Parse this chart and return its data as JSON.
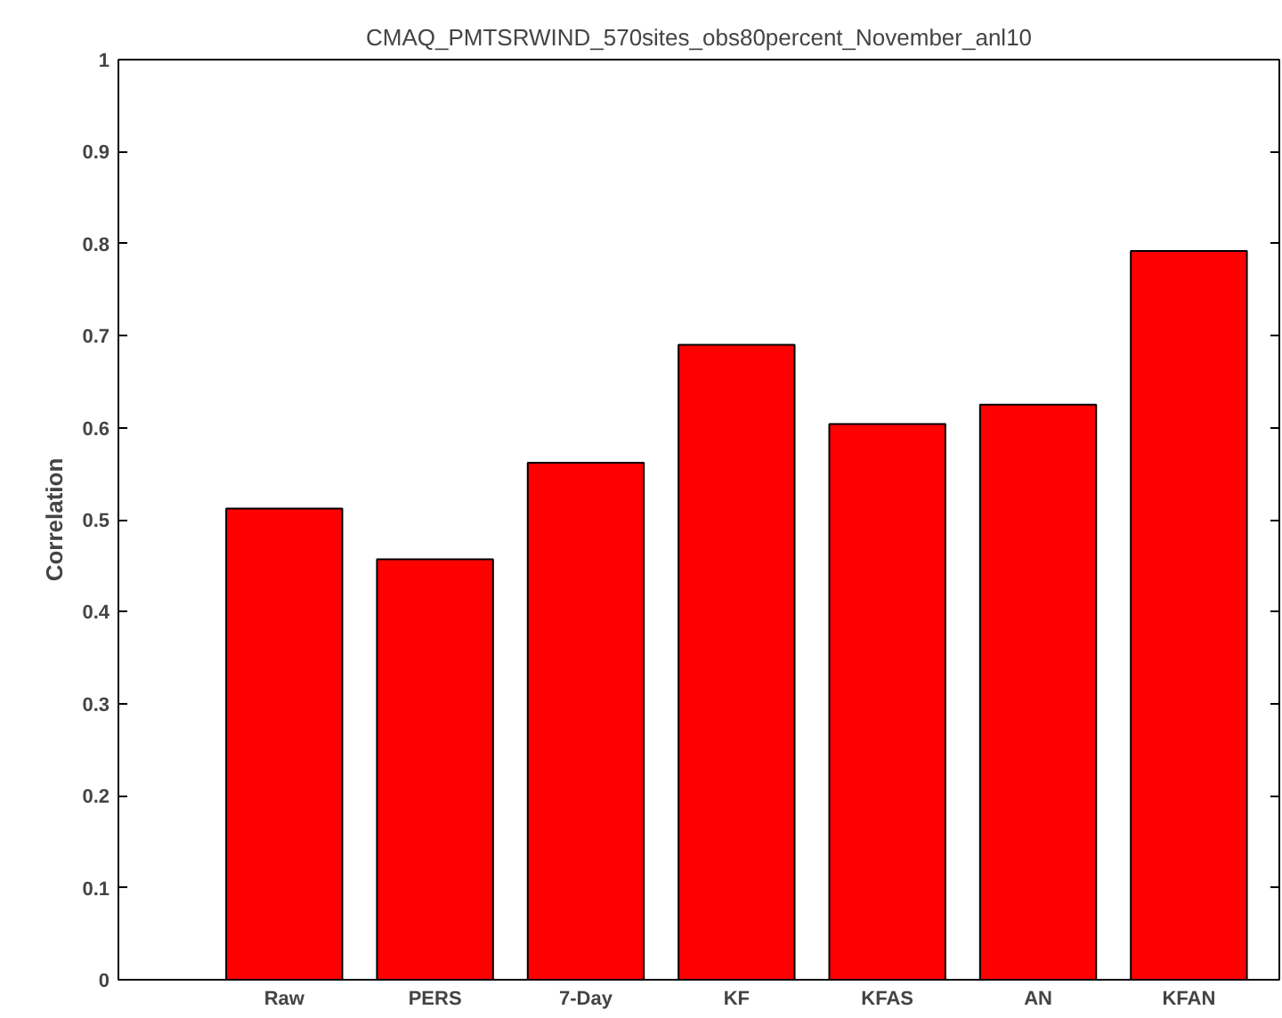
{
  "chart_data": {
    "type": "bar",
    "title": "CMAQ_PMTSRWIND_570sites_obs80percent_November_anl10",
    "ylabel": "Correlation",
    "categories": [
      "Raw",
      "PERS",
      "7-Day",
      "KF",
      "KFAS",
      "AN",
      "KFAN"
    ],
    "values": [
      0.512,
      0.457,
      0.562,
      0.69,
      0.604,
      0.625,
      0.792
    ],
    "color": "#ff0000",
    "ylim": [
      0,
      1
    ],
    "yticks": [
      0,
      0.1,
      0.2,
      0.3,
      0.4,
      0.5,
      0.6,
      0.7,
      0.8,
      0.9,
      1
    ],
    "grid": false
  }
}
